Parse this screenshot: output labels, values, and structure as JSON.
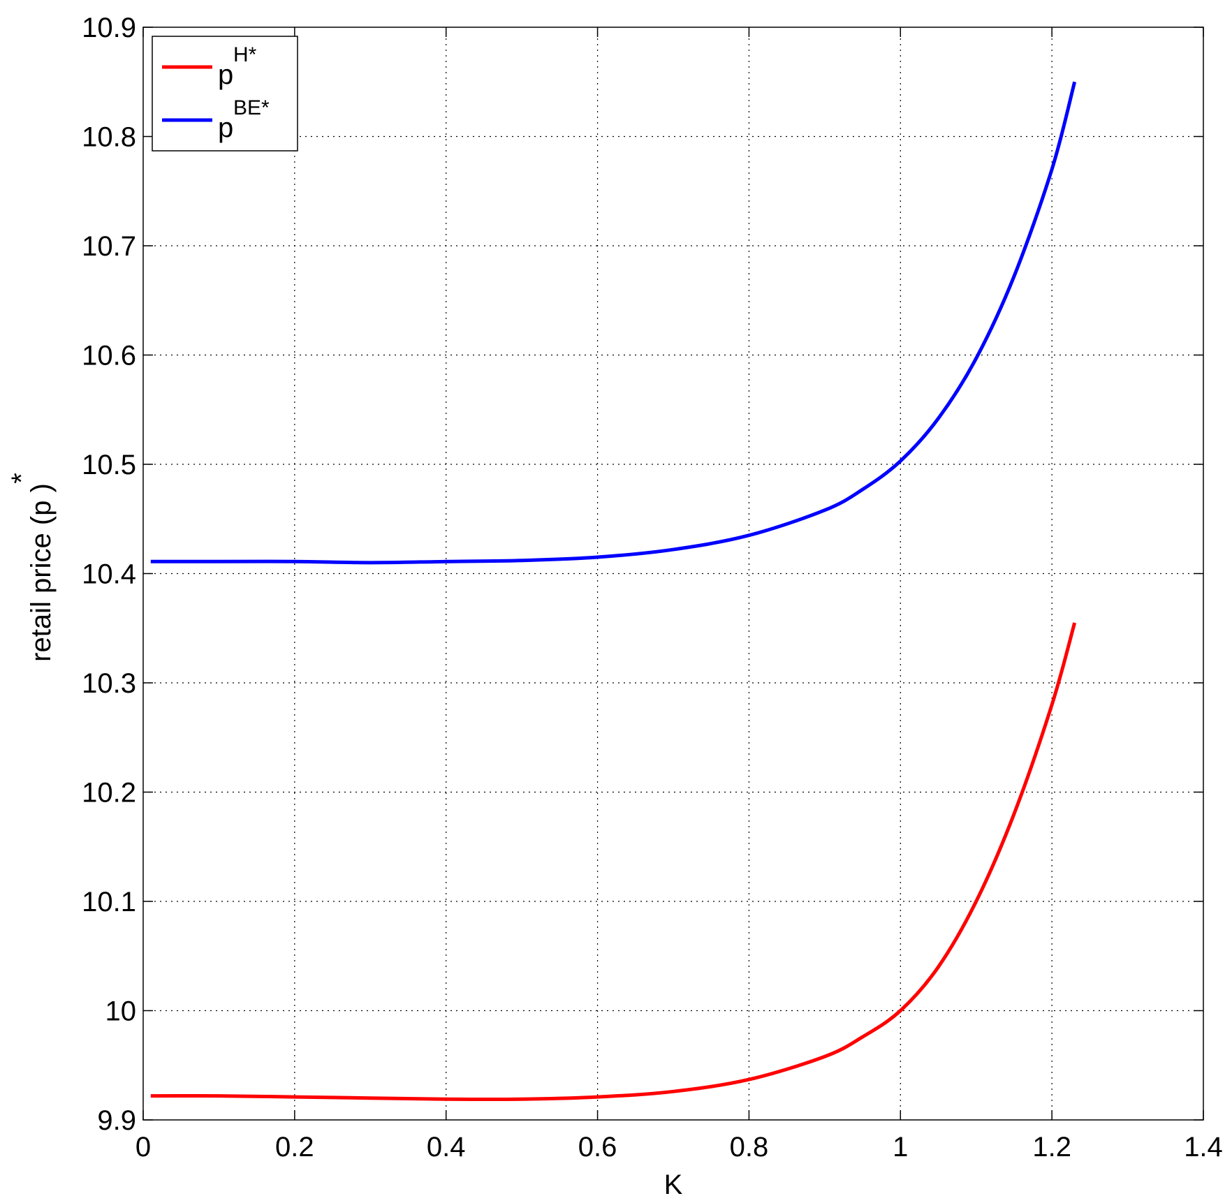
{
  "chart_data": {
    "type": "line",
    "xlabel": "K",
    "ylabel": {
      "text": "retail price (p  )",
      "superscript": "*"
    },
    "xlim": [
      0,
      1.4
    ],
    "ylim": [
      9.9,
      10.9
    ],
    "grid": true,
    "legend_position": "top-left",
    "x_ticks": [
      "0",
      "0.2",
      "0.4",
      "0.6",
      "0.8",
      "1",
      "1.2",
      "1.4"
    ],
    "y_ticks": [
      "9.9",
      "10",
      "10.1",
      "10.2",
      "10.3",
      "10.4",
      "10.5",
      "10.6",
      "10.7",
      "10.8",
      "10.9"
    ],
    "series": [
      {
        "name": "pH*",
        "legend_base": "p",
        "legend_sup": "H*",
        "color": "#ff0000",
        "x": [
          0.01,
          0.1,
          0.2,
          0.3,
          0.4,
          0.5,
          0.6,
          0.7,
          0.8,
          0.9,
          0.95,
          1.0,
          1.05,
          1.1,
          1.15,
          1.2,
          1.23
        ],
        "y": [
          9.922,
          9.922,
          9.921,
          9.92,
          9.919,
          9.919,
          9.921,
          9.926,
          9.937,
          9.958,
          9.976,
          10.0,
          10.04,
          10.1,
          10.18,
          10.28,
          10.355
        ]
      },
      {
        "name": "pBE*",
        "legend_base": "p",
        "legend_sup": "BE*",
        "color": "#0000ff",
        "x": [
          0.01,
          0.1,
          0.2,
          0.3,
          0.4,
          0.5,
          0.6,
          0.7,
          0.8,
          0.9,
          0.95,
          1.0,
          1.05,
          1.1,
          1.15,
          1.2,
          1.23
        ],
        "y": [
          10.411,
          10.411,
          10.411,
          10.41,
          10.411,
          10.412,
          10.415,
          10.422,
          10.435,
          10.458,
          10.477,
          10.503,
          10.542,
          10.597,
          10.672,
          10.77,
          10.85
        ]
      }
    ]
  }
}
